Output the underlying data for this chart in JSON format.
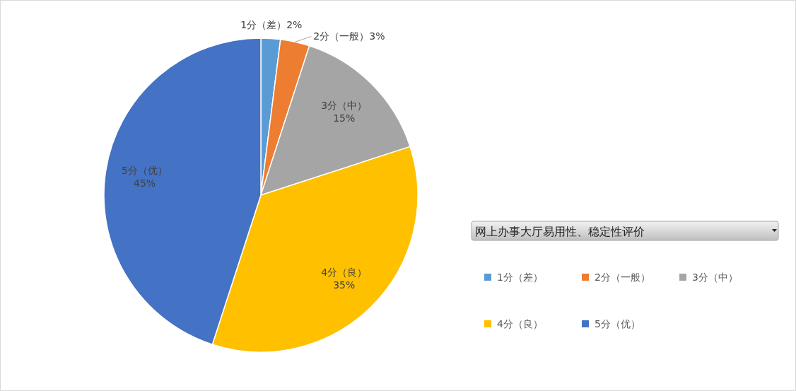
{
  "chart_data": {
    "type": "pie",
    "legend_title": "网上办事大厅易用性、稳定性评价",
    "categories": [
      "1分（差）",
      "2分（一般）",
      "3分（中）",
      "4分（良）",
      "5分（优）"
    ],
    "values": [
      2,
      3,
      15,
      35,
      45
    ],
    "colors": [
      "#5b9bd5",
      "#ed7d31",
      "#a5a5a5",
      "#ffc000",
      "#4472c4"
    ],
    "value_labels": [
      "2%",
      "3%",
      "15%",
      "35%",
      "45%"
    ],
    "legend": "right"
  }
}
